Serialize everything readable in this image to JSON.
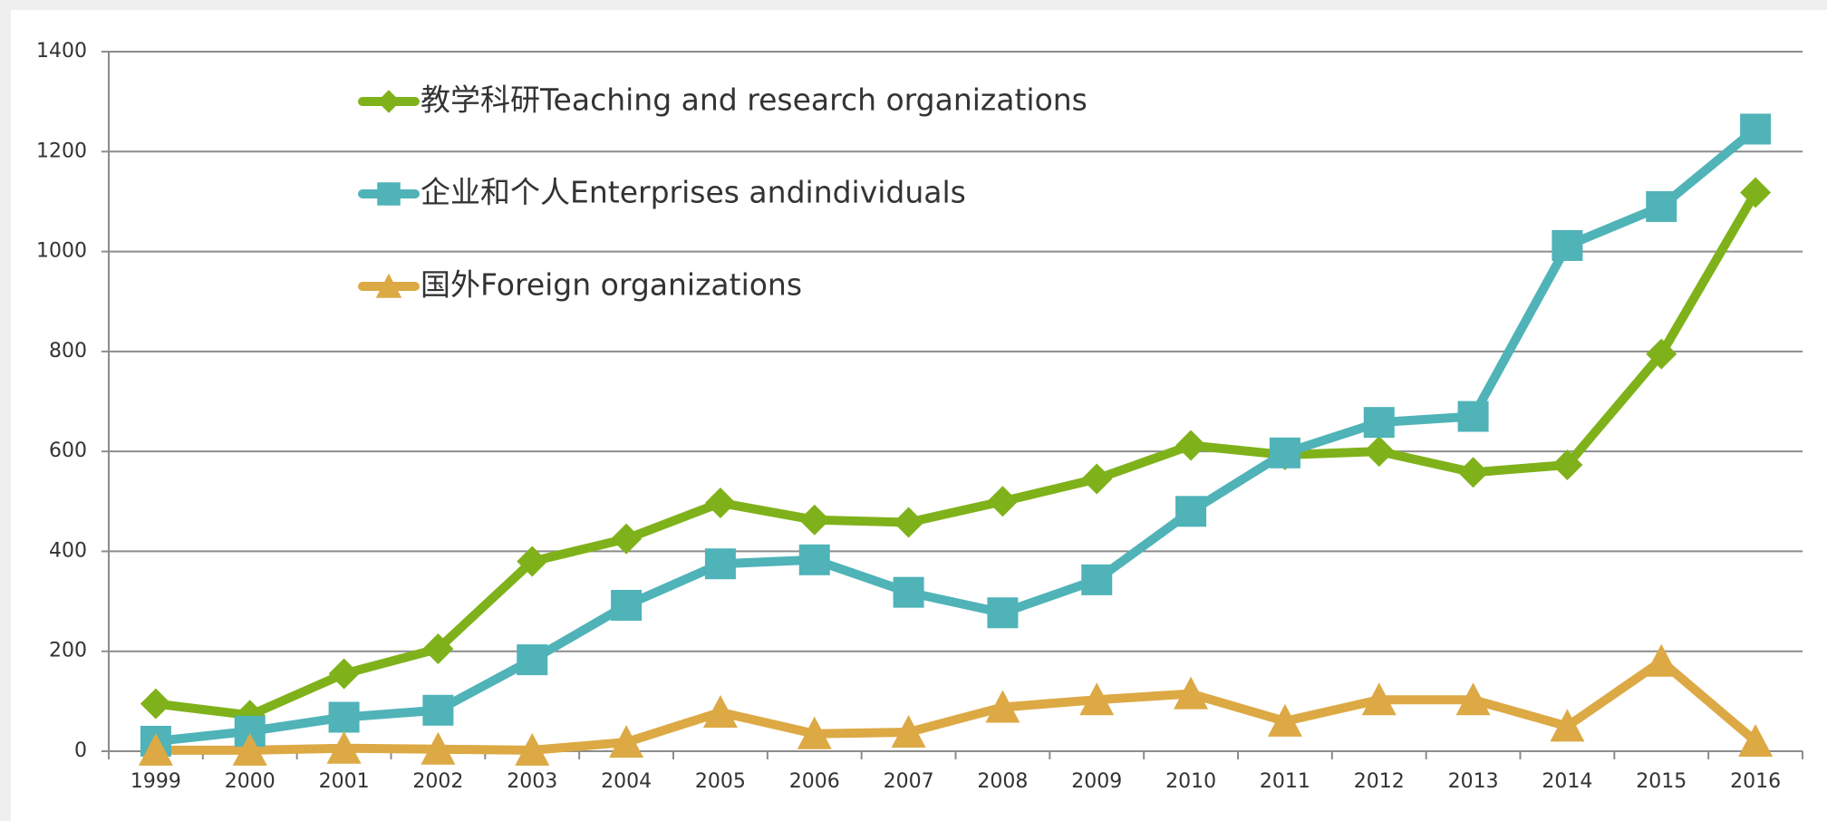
{
  "chart_data": {
    "type": "line",
    "categories": [
      "1999",
      "2000",
      "2001",
      "2002",
      "2003",
      "2004",
      "2005",
      "2006",
      "2007",
      "2008",
      "2009",
      "2010",
      "2011",
      "2012",
      "2013",
      "2014",
      "2015",
      "2016"
    ],
    "series": [
      {
        "name": "教学科研Teaching and research organizations",
        "color": "#7fb21a",
        "marker": "diamond",
        "values": [
          95,
          72,
          155,
          205,
          380,
          425,
          497,
          463,
          458,
          500,
          545,
          612,
          593,
          600,
          558,
          573,
          795,
          1118
        ]
      },
      {
        "name": "企业和个人Enterprises andindividuals",
        "color": "#4fb3b8",
        "marker": "square",
        "values": [
          20,
          40,
          68,
          82,
          183,
          292,
          375,
          383,
          318,
          277,
          343,
          480,
          597,
          658,
          670,
          1012,
          1090,
          1245
        ]
      },
      {
        "name": "国外Foreign organizations",
        "color": "#dca944",
        "marker": "triangle",
        "values": [
          2,
          2,
          6,
          4,
          2,
          18,
          78,
          35,
          38,
          88,
          103,
          115,
          60,
          103,
          103,
          50,
          180,
          20
        ]
      }
    ],
    "ylim": [
      0,
      1400
    ],
    "yticks": [
      0,
      200,
      400,
      600,
      800,
      1000,
      1200,
      1400
    ],
    "grid": true,
    "legend": "upper left"
  }
}
